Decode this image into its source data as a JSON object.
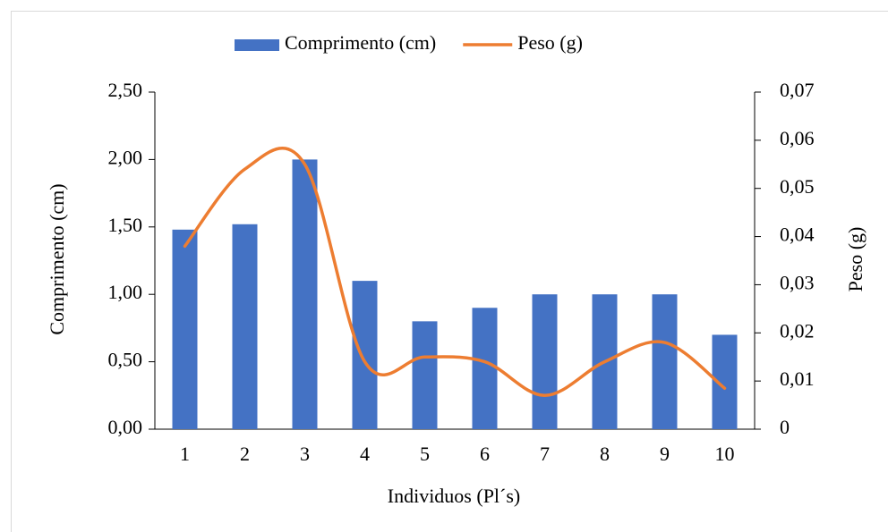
{
  "chart_data": {
    "type": "bar_line",
    "categories": [
      "1",
      "2",
      "3",
      "4",
      "5",
      "6",
      "7",
      "8",
      "9",
      "10"
    ],
    "x_label": "Individuos (Pl´s)",
    "y_label": "Comprimento (cm)",
    "y2_label": "Peso (g)",
    "legend": "top",
    "series": [
      {
        "name": "Comprimento (cm)",
        "type": "bar",
        "color": "#4472c4",
        "values": [
          1.48,
          1.52,
          2.0,
          1.1,
          0.8,
          0.9,
          1.0,
          1.0,
          1.0,
          0.7
        ]
      },
      {
        "name": "Peso (g)",
        "type": "line",
        "axis": "y2",
        "color": "#ed7d31",
        "values": [
          0.038,
          0.054,
          0.055,
          0.014,
          0.015,
          0.014,
          0.007,
          0.014,
          0.018,
          0.0085
        ]
      }
    ],
    "ylim": [
      0,
      2.5
    ],
    "yticks": [
      {
        "value": 0,
        "label": "0,00"
      },
      {
        "value": 0.5,
        "label": "0,50"
      },
      {
        "value": 1.0,
        "label": "1,00"
      },
      {
        "value": 1.5,
        "label": "1,50"
      },
      {
        "value": 2.0,
        "label": "2,00"
      },
      {
        "value": 2.5,
        "label": "2,50"
      }
    ],
    "y2lim": [
      0,
      0.07
    ],
    "y2ticks": [
      0,
      {
        "value": 0.01,
        "label": "0,01"
      },
      {
        "value": 0.02,
        "label": "0,02"
      },
      {
        "value": 0.03,
        "label": "0,03"
      },
      {
        "value": 0.04,
        "label": "0,04"
      },
      {
        "value": 0.05,
        "label": "0,05"
      },
      {
        "value": 0.06,
        "label": "0,06"
      },
      {
        "value": 0.07,
        "label": "0,07"
      }
    ]
  }
}
